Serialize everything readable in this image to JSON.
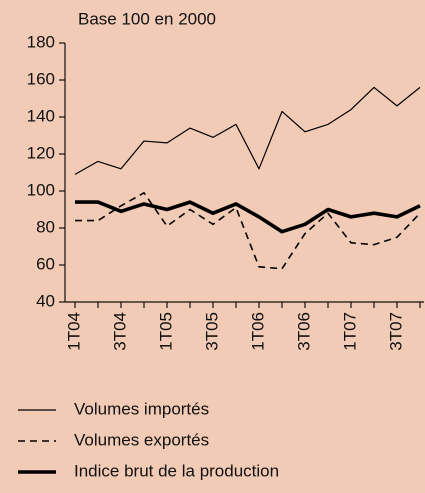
{
  "chart_data": {
    "type": "line",
    "y_axis_label": "Base 100 en 2000",
    "categories": [
      "1T04",
      null,
      "3T04",
      null,
      "1T05",
      null,
      "3T05",
      null,
      "1T06",
      null,
      "3T06",
      null,
      "1T07",
      null,
      "3T07",
      null
    ],
    "series": [
      {
        "name": "Volumes importés",
        "color": "#000000",
        "style": "solid",
        "values": [
          109,
          116,
          112,
          127,
          126,
          134,
          129,
          136,
          112,
          143,
          132,
          136,
          144,
          156,
          146,
          156
        ]
      },
      {
        "name": "Volumes exportés",
        "color": "#000000",
        "style": "dashed",
        "values": [
          84,
          84,
          92,
          99,
          81,
          90,
          82,
          91,
          59,
          58,
          77,
          88,
          72,
          71,
          75,
          88
        ]
      },
      {
        "name": "Indice brut de la production",
        "color": "#000000",
        "style": "bold",
        "values": [
          94,
          94,
          89,
          93,
          90,
          94,
          88,
          93,
          86,
          78,
          82,
          90,
          86,
          88,
          86,
          92
        ]
      }
    ],
    "ylim": [
      40,
      180
    ],
    "yticks": [
      40,
      60,
      80,
      100,
      120,
      140,
      160,
      180
    ],
    "grid": false
  }
}
